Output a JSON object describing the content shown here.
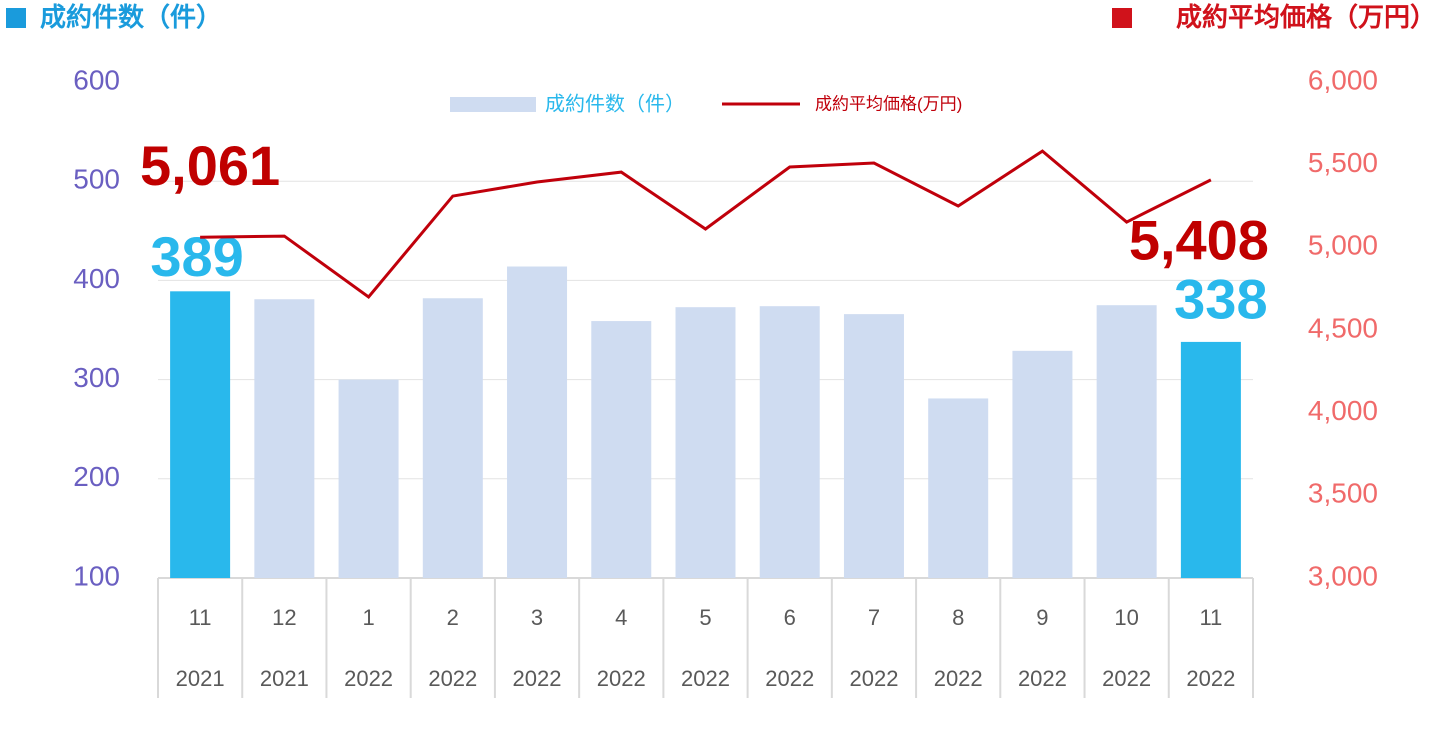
{
  "chart_data": {
    "type": "bar_line",
    "left_title": "成約件数（件）",
    "right_title": "成約平均価格（万円）",
    "categories": [
      "11",
      "12",
      "1",
      "2",
      "3",
      "4",
      "5",
      "6",
      "7",
      "8",
      "9",
      "10",
      "11"
    ],
    "category_groups": [
      "2021",
      "2021",
      "2022",
      "2022",
      "2022",
      "2022",
      "2022",
      "2022",
      "2022",
      "2022",
      "2022",
      "2022",
      "2022"
    ],
    "series": [
      {
        "name": "成約件数（件）",
        "type": "bar",
        "color": "#cfdcf1",
        "colors": [
          "#29b8ec",
          "#cfdcf1",
          "#cfdcf1",
          "#cfdcf1",
          "#cfdcf1",
          "#cfdcf1",
          "#cfdcf1",
          "#cfdcf1",
          "#cfdcf1",
          "#cfdcf1",
          "#cfdcf1",
          "#cfdcf1",
          "#29b8ec"
        ],
        "label_color": "#29b8ec",
        "values": [
          389,
          381,
          300,
          382,
          414,
          359,
          373,
          374,
          366,
          281,
          329,
          375,
          338
        ],
        "value_labels": [
          "389",
          null,
          null,
          null,
          null,
          null,
          null,
          null,
          null,
          null,
          null,
          null,
          "338"
        ]
      },
      {
        "name": "成約平均価格(万円)",
        "type": "line",
        "axis": "y2",
        "color": "#c0000b",
        "label_color": "#c00000",
        "values": [
          5061,
          5068,
          4700,
          5310,
          5395,
          5455,
          5111,
          5486,
          5510,
          5250,
          5582,
          5153,
          5408
        ],
        "value_labels": [
          "5,061",
          null,
          null,
          null,
          null,
          null,
          null,
          null,
          null,
          null,
          null,
          null,
          "5,408"
        ]
      }
    ],
    "ylim": [
      100,
      600
    ],
    "yticks": [
      100,
      200,
      300,
      400,
      500,
      600
    ],
    "y2lim": [
      3000,
      6000
    ],
    "y2ticks": [
      {
        "value": 3000,
        "label": "3,000"
      },
      {
        "value": 3500,
        "label": "3,500"
      },
      {
        "value": 4000,
        "label": "4,000"
      },
      {
        "value": 4500,
        "label": "4,500"
      },
      {
        "value": 5000,
        "label": "5,000"
      },
      {
        "value": 5500,
        "label": "5,500"
      },
      {
        "value": 6000,
        "label": "6,000"
      }
    ],
    "grid": true
  }
}
